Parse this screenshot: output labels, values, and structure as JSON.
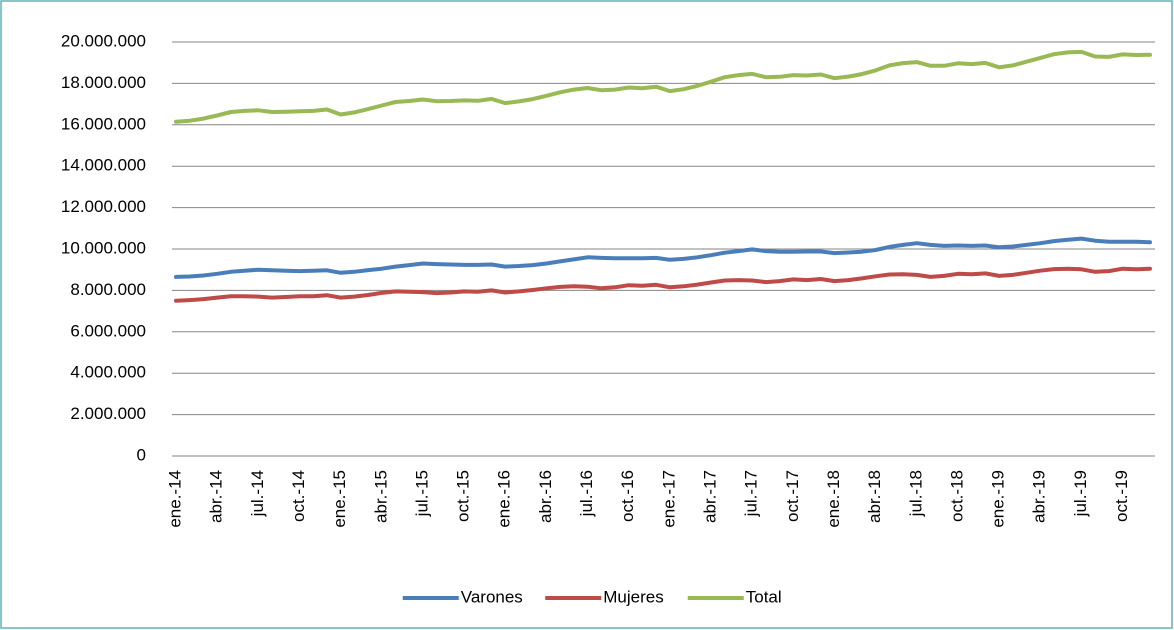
{
  "chart_data": {
    "type": "line",
    "categories": [
      "ene.-14",
      null,
      null,
      "abr.-14",
      null,
      null,
      "jul.-14",
      null,
      null,
      "oct.-14",
      null,
      null,
      "ene.-15",
      null,
      null,
      "abr.-15",
      null,
      null,
      "jul.-15",
      null,
      null,
      "oct.-15",
      null,
      null,
      "ene.-16",
      null,
      null,
      "abr.-16",
      null,
      null,
      "jul.-16",
      null,
      null,
      "oct.-16",
      null,
      null,
      "ene.-17",
      null,
      null,
      "abr.-17",
      null,
      null,
      "jul.-17",
      null,
      null,
      "oct.-17",
      null,
      null,
      "ene.-18",
      null,
      null,
      "abr.-18",
      null,
      null,
      "jul.-18",
      null,
      null,
      "oct.-18",
      null,
      null,
      "ene.-19",
      null,
      null,
      "abr.-19",
      null,
      null,
      "jul.-19",
      null,
      null,
      "oct.-19",
      null,
      null
    ],
    "series": [
      {
        "name": "Varones",
        "color": "#4a7ebb",
        "values": [
          8650000,
          8670000,
          8720000,
          8800000,
          8900000,
          8950000,
          9000000,
          8970000,
          8950000,
          8930000,
          8950000,
          8970000,
          8850000,
          8900000,
          8980000,
          9050000,
          9150000,
          9220000,
          9300000,
          9270000,
          9250000,
          9230000,
          9230000,
          9250000,
          9150000,
          9180000,
          9220000,
          9300000,
          9400000,
          9500000,
          9600000,
          9570000,
          9550000,
          9550000,
          9550000,
          9570000,
          9480000,
          9520000,
          9600000,
          9700000,
          9820000,
          9900000,
          9980000,
          9900000,
          9870000,
          9870000,
          9880000,
          9880000,
          9800000,
          9830000,
          9870000,
          9950000,
          10100000,
          10200000,
          10280000,
          10200000,
          10150000,
          10170000,
          10150000,
          10170000,
          10080000,
          10120000,
          10200000,
          10280000,
          10380000,
          10450000,
          10500000,
          10400000,
          10350000,
          10350000,
          10350000,
          10330000
        ]
      },
      {
        "name": "Mujeres",
        "color": "#be4b48",
        "values": [
          7500000,
          7530000,
          7580000,
          7650000,
          7720000,
          7720000,
          7700000,
          7650000,
          7680000,
          7720000,
          7720000,
          7770000,
          7650000,
          7700000,
          7780000,
          7880000,
          7950000,
          7930000,
          7920000,
          7870000,
          7900000,
          7950000,
          7930000,
          8000000,
          7900000,
          7950000,
          8020000,
          8100000,
          8170000,
          8200000,
          8180000,
          8100000,
          8150000,
          8250000,
          8220000,
          8270000,
          8150000,
          8200000,
          8280000,
          8380000,
          8480000,
          8500000,
          8480000,
          8400000,
          8450000,
          8530000,
          8500000,
          8550000,
          8450000,
          8500000,
          8580000,
          8680000,
          8770000,
          8780000,
          8750000,
          8650000,
          8700000,
          8800000,
          8780000,
          8820000,
          8700000,
          8750000,
          8850000,
          8950000,
          9030000,
          9050000,
          9020000,
          8900000,
          8930000,
          9050000,
          9020000,
          9050000
        ]
      },
      {
        "name": "Total",
        "color": "#98b954",
        "values": [
          16150000,
          16200000,
          16300000,
          16450000,
          16620000,
          16670000,
          16700000,
          16620000,
          16630000,
          16650000,
          16670000,
          16740000,
          16500000,
          16600000,
          16760000,
          16930000,
          17100000,
          17150000,
          17220000,
          17140000,
          17150000,
          17180000,
          17160000,
          17250000,
          17050000,
          17130000,
          17240000,
          17400000,
          17570000,
          17700000,
          17780000,
          17670000,
          17700000,
          17800000,
          17770000,
          17840000,
          17630000,
          17720000,
          17880000,
          18080000,
          18300000,
          18400000,
          18460000,
          18300000,
          18320000,
          18400000,
          18380000,
          18430000,
          18250000,
          18330000,
          18450000,
          18630000,
          18870000,
          18980000,
          19030000,
          18850000,
          18850000,
          18970000,
          18930000,
          18990000,
          18780000,
          18870000,
          19050000,
          19230000,
          19410000,
          19500000,
          19520000,
          19300000,
          19280000,
          19400000,
          19370000,
          19380000
        ]
      }
    ],
    "ylim": [
      0,
      20000000
    ],
    "yticks": [
      0,
      {
        "value": 2000000,
        "label": "2.000.000"
      },
      {
        "value": 4000000,
        "label": "4.000.000"
      },
      {
        "value": 6000000,
        "label": "6.000.000"
      },
      {
        "value": 8000000,
        "label": "8.000.000"
      },
      {
        "value": 10000000,
        "label": "10.000.000"
      },
      {
        "value": 12000000,
        "label": "12.000.000"
      },
      {
        "value": 14000000,
        "label": "14.000.000"
      },
      {
        "value": 16000000,
        "label": "16.000.000"
      },
      {
        "value": 18000000,
        "label": "18.000.000"
      },
      {
        "value": 20000000,
        "label": "20.000.000"
      }
    ],
    "grid": true,
    "legend": "bottom"
  }
}
